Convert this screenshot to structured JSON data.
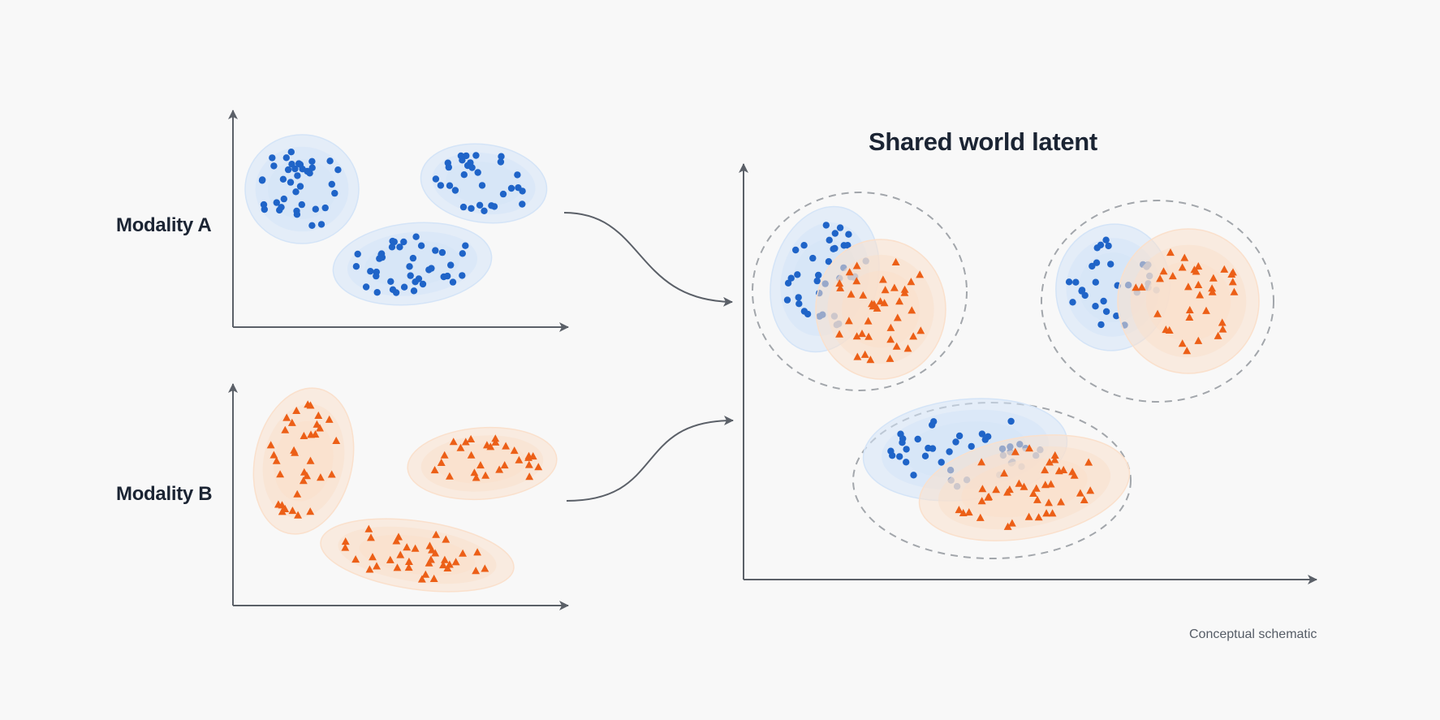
{
  "labels": {
    "modality_a": "Modality A",
    "modality_b": "Modality B",
    "shared_title": "Shared world latent",
    "caption": "Conceptual schematic"
  },
  "colors": {
    "background": "#f8f8f8",
    "axis": "#5b6068",
    "text": "#1b2433",
    "caption": "#555c66",
    "modality_a_point": "#1f64c8",
    "modality_a_fill": "#d4e4f7",
    "modality_b_point": "#ec5f17",
    "modality_b_fill": "#fae0cc",
    "dashed_boundary": "#a2a6ab"
  },
  "icons": {
    "modality_a_marker": "circle",
    "modality_b_marker": "triangle"
  },
  "diagram": {
    "modality_a_clusters": 3,
    "modality_b_clusters": 3,
    "shared_latent_clusters": 3
  }
}
